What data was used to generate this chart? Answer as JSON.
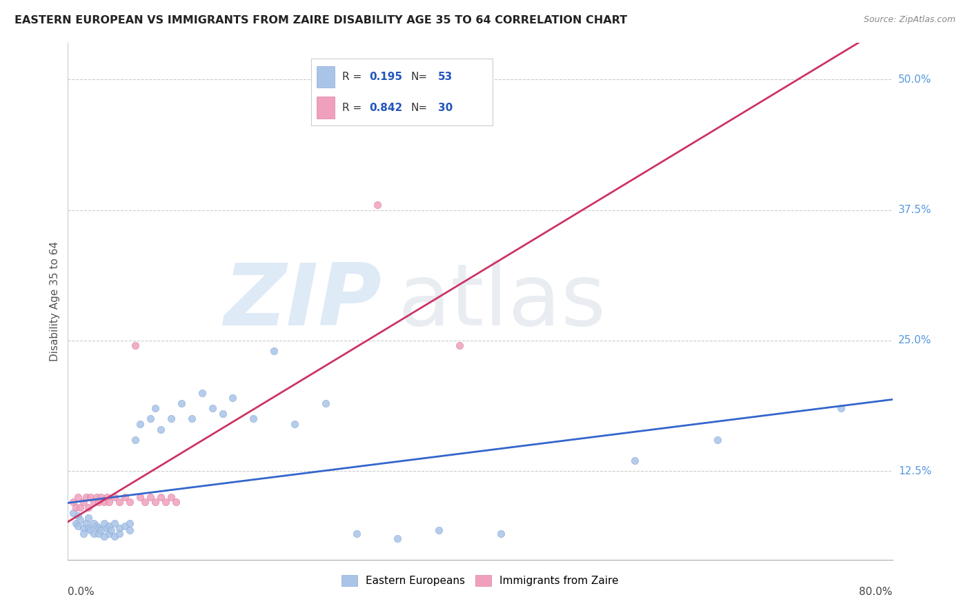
{
  "title": "EASTERN EUROPEAN VS IMMIGRANTS FROM ZAIRE DISABILITY AGE 35 TO 64 CORRELATION CHART",
  "source": "Source: ZipAtlas.com",
  "ylabel": "Disability Age 35 to 64",
  "ytick_labels": [
    "12.5%",
    "25.0%",
    "37.5%",
    "50.0%"
  ],
  "ytick_values": [
    0.125,
    0.25,
    0.375,
    0.5
  ],
  "xmin": 0.0,
  "xmax": 0.8,
  "ymin": 0.04,
  "ymax": 0.535,
  "legend1_R": "0.195",
  "legend1_N": "53",
  "legend2_R": "0.842",
  "legend2_N": "30",
  "blue_scatter_color": "#aac4e8",
  "pink_scatter_color": "#f0a0bc",
  "blue_line_color": "#3366cc",
  "pink_line_color": "#cc3366",
  "blue_points_x": [
    0.005,
    0.008,
    0.01,
    0.01,
    0.012,
    0.015,
    0.015,
    0.018,
    0.02,
    0.02,
    0.022,
    0.025,
    0.025,
    0.028,
    0.03,
    0.03,
    0.032,
    0.035,
    0.035,
    0.038,
    0.04,
    0.04,
    0.042,
    0.045,
    0.045,
    0.05,
    0.05,
    0.055,
    0.06,
    0.06,
    0.065,
    0.07,
    0.08,
    0.085,
    0.09,
    0.1,
    0.11,
    0.12,
    0.13,
    0.14,
    0.15,
    0.16,
    0.18,
    0.2,
    0.22,
    0.25,
    0.28,
    0.32,
    0.36,
    0.42,
    0.55,
    0.63,
    0.75
  ],
  "blue_points_y": [
    0.085,
    0.075,
    0.082,
    0.072,
    0.078,
    0.07,
    0.065,
    0.075,
    0.08,
    0.07,
    0.068,
    0.075,
    0.065,
    0.072,
    0.07,
    0.065,
    0.068,
    0.075,
    0.062,
    0.07,
    0.072,
    0.065,
    0.068,
    0.075,
    0.062,
    0.07,
    0.065,
    0.072,
    0.075,
    0.068,
    0.155,
    0.17,
    0.175,
    0.185,
    0.165,
    0.175,
    0.19,
    0.175,
    0.2,
    0.185,
    0.18,
    0.195,
    0.175,
    0.24,
    0.17,
    0.19,
    0.065,
    0.06,
    0.068,
    0.065,
    0.135,
    0.155,
    0.185
  ],
  "pink_points_x": [
    0.005,
    0.008,
    0.01,
    0.012,
    0.015,
    0.018,
    0.02,
    0.022,
    0.025,
    0.028,
    0.03,
    0.032,
    0.035,
    0.038,
    0.04,
    0.045,
    0.05,
    0.055,
    0.06,
    0.065,
    0.07,
    0.075,
    0.08,
    0.085,
    0.09,
    0.095,
    0.1,
    0.105,
    0.3,
    0.38
  ],
  "pink_points_y": [
    0.095,
    0.09,
    0.1,
    0.09,
    0.095,
    0.1,
    0.09,
    0.1,
    0.095,
    0.1,
    0.095,
    0.1,
    0.095,
    0.1,
    0.095,
    0.1,
    0.095,
    0.1,
    0.095,
    0.245,
    0.1,
    0.095,
    0.1,
    0.095,
    0.1,
    0.095,
    0.1,
    0.095,
    0.38,
    0.245
  ]
}
